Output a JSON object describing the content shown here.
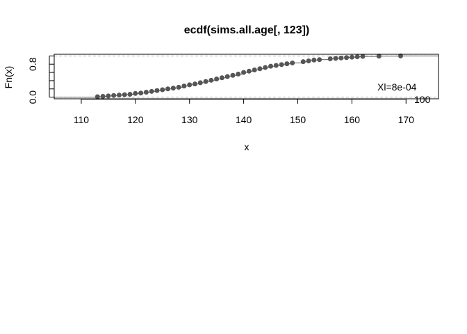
{
  "chart_data": {
    "type": "line",
    "title": "ecdf(sims.all.age[, 123])",
    "xlabel": "x",
    "ylabel": "Fn(x)",
    "xlim": [
      105,
      176
    ],
    "ylim": [
      0,
      1
    ],
    "x_ticks": [
      110,
      120,
      130,
      140,
      150,
      160,
      170
    ],
    "y_tick_values": [
      0.0,
      0.2,
      0.4,
      0.6,
      0.8,
      1.0
    ],
    "y_tick_labels": [
      "0.0",
      "0.8"
    ],
    "grid": false,
    "reference_lines": [
      0,
      1
    ],
    "annotation": "Xl=8e-04",
    "annotation_partial": "100",
    "series": [
      {
        "x": [
          113,
          114,
          115,
          116,
          117,
          118,
          119,
          120,
          121,
          122,
          123,
          124,
          125,
          126,
          127,
          128,
          129,
          130,
          131,
          132,
          133,
          134,
          135,
          136,
          137,
          138,
          139,
          140,
          141,
          142,
          143,
          144,
          145,
          146,
          147,
          148,
          149,
          151,
          152,
          153,
          154,
          156,
          157,
          158,
          159,
          160,
          161,
          162,
          165,
          169
        ],
        "y": [
          0.01,
          0.02,
          0.03,
          0.04,
          0.05,
          0.06,
          0.07,
          0.09,
          0.1,
          0.12,
          0.14,
          0.16,
          0.18,
          0.2,
          0.22,
          0.24,
          0.27,
          0.3,
          0.32,
          0.35,
          0.38,
          0.41,
          0.44,
          0.47,
          0.5,
          0.53,
          0.56,
          0.6,
          0.63,
          0.66,
          0.69,
          0.72,
          0.75,
          0.77,
          0.79,
          0.81,
          0.83,
          0.86,
          0.88,
          0.9,
          0.91,
          0.93,
          0.94,
          0.95,
          0.96,
          0.97,
          0.98,
          0.99,
          0.995,
          1.0
        ]
      }
    ],
    "colors": {
      "points": "#555555",
      "step": "#555555",
      "ref": "#aaaaaa",
      "box": "#000000"
    }
  }
}
